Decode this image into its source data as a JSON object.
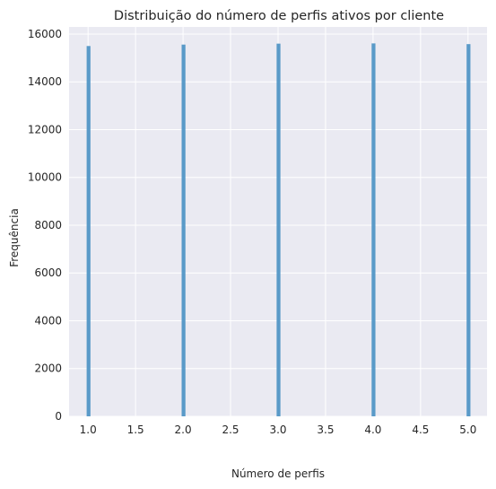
{
  "chart_data": {
    "type": "bar",
    "title": "Distribuição do número de perfis ativos por cliente",
    "xlabel": "Número de perfis",
    "ylabel": "Frequência",
    "x": [
      1.0,
      2.0,
      3.0,
      4.0,
      5.0
    ],
    "values": [
      15500,
      15560,
      15600,
      15610,
      15580
    ],
    "xlim": [
      0.8,
      5.2
    ],
    "ylim": [
      0,
      16300
    ],
    "xticks": [
      "1.0",
      "1.5",
      "2.0",
      "2.5",
      "3.0",
      "3.5",
      "4.0",
      "4.5",
      "5.0"
    ],
    "yticks": [
      "0",
      "2000",
      "4000",
      "6000",
      "8000",
      "10000",
      "12000",
      "14000",
      "16000"
    ],
    "grid": true,
    "legend": "none",
    "colors": {
      "bar": "#4c93c4",
      "background": "#eaeaf2",
      "grid": "#ffffff",
      "text": "#262626"
    }
  }
}
